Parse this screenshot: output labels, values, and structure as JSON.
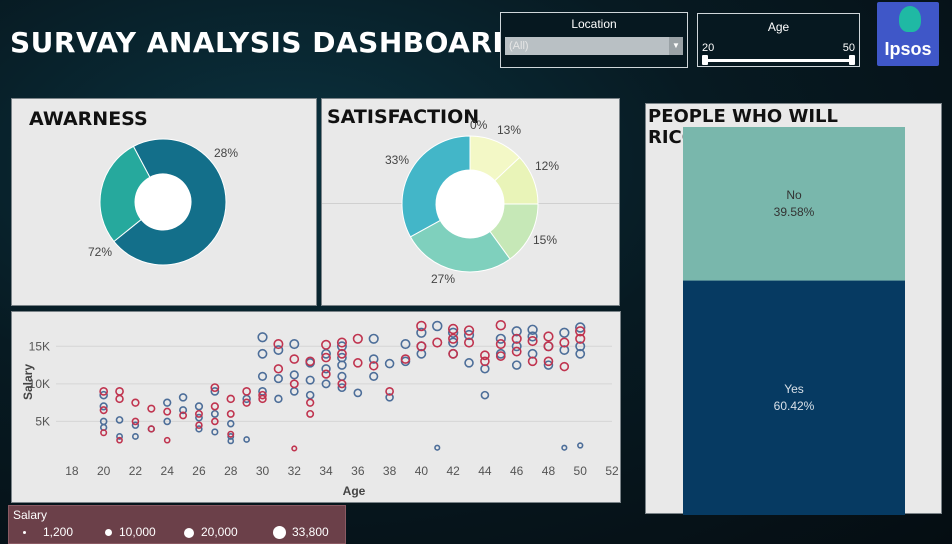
{
  "title": "SURVAY ANALYSIS DASHBOARD",
  "filters": {
    "location": {
      "label": "Location",
      "value": "(All)"
    },
    "age": {
      "label": "Age",
      "min": "20",
      "max": "50"
    }
  },
  "logo_text": "Ipsos",
  "awareness": {
    "title": "AWARNESS",
    "labels": [
      "72%",
      "28%"
    ]
  },
  "satisfaction": {
    "title": "SATISFACTION",
    "labels": [
      "0%",
      "13%",
      "12%",
      "15%",
      "27%",
      "33%"
    ]
  },
  "recommend": {
    "title": "PEOPLE WHO WILL RICOMMEND",
    "no_label": "No",
    "no_pct": "39.58%",
    "yes_label": "Yes",
    "yes_pct": "60.42%"
  },
  "scatter": {
    "xlabel": "Age",
    "ylabel": "Salary"
  },
  "salary_legend": {
    "title": "Salary",
    "items": [
      "1,200",
      "10,000",
      "20,000",
      "33,800"
    ]
  },
  "colors": {
    "awareness": [
      "#136f8a",
      "#26a99d"
    ],
    "satisfaction": [
      "#fdfcdc",
      "#f3f8c6",
      "#e9f4b8",
      "#c6e8b7",
      "#7fd0bd",
      "#43b6c8"
    ],
    "recommend_no": "#79b7ac",
    "recommend_yes": "#063a62",
    "blue": "#4d6e99",
    "red": "#c0344f"
  },
  "chart_data": [
    {
      "type": "pie",
      "title": "AWARNESS",
      "categories": [
        "",
        ""
      ],
      "values": [
        72,
        28
      ]
    },
    {
      "type": "pie",
      "title": "SATISFACTION",
      "values": [
        0,
        13,
        12,
        15,
        27,
        33
      ]
    },
    {
      "type": "bar",
      "title": "PEOPLE WHO WILL RICOMMEND",
      "categories": [
        "No",
        "Yes"
      ],
      "values": [
        39.58,
        60.42
      ]
    },
    {
      "type": "scatter",
      "xlabel": "Age",
      "ylabel": "Salary",
      "xlim": [
        17,
        52
      ],
      "ylim": [
        0,
        18500
      ],
      "xticks": [
        18,
        20,
        22,
        24,
        26,
        28,
        30,
        32,
        34,
        36,
        38,
        40,
        42,
        44,
        46,
        48,
        50,
        52
      ],
      "yticks": [
        5000,
        10000,
        15000
      ],
      "ytick_labels": [
        "5K",
        "10K",
        "15K"
      ],
      "series": [
        {
          "name": "blue",
          "points": [
            [
              20,
              8500
            ],
            [
              20,
              7000
            ],
            [
              20,
              5000
            ],
            [
              20,
              4200
            ],
            [
              21,
              3000
            ],
            [
              21,
              5200
            ],
            [
              22,
              4500
            ],
            [
              22,
              3000
            ],
            [
              23,
              4000
            ],
            [
              24,
              5000
            ],
            [
              24,
              7500
            ],
            [
              25,
              6500
            ],
            [
              25,
              8200
            ],
            [
              26,
              5500
            ],
            [
              26,
              7000
            ],
            [
              26,
              4000
            ],
            [
              27,
              3600
            ],
            [
              27,
              9000
            ],
            [
              27,
              6000
            ],
            [
              28,
              3000
            ],
            [
              28,
              4700
            ],
            [
              28,
              2400
            ],
            [
              29,
              2600
            ],
            [
              29,
              8000
            ],
            [
              30,
              16200
            ],
            [
              30,
              14000
            ],
            [
              30,
              11000
            ],
            [
              30,
              9000
            ],
            [
              31,
              14500
            ],
            [
              31,
              10700
            ],
            [
              31,
              8000
            ],
            [
              32,
              15300
            ],
            [
              32,
              11200
            ],
            [
              32,
              9000
            ],
            [
              33,
              12800
            ],
            [
              33,
              10500
            ],
            [
              33,
              8500
            ],
            [
              34,
              12000
            ],
            [
              34,
              10000
            ],
            [
              34,
              14000
            ],
            [
              35,
              13500
            ],
            [
              35,
              12500
            ],
            [
              35,
              11000
            ],
            [
              35,
              9500
            ],
            [
              35,
              15000
            ],
            [
              36,
              8800
            ],
            [
              37,
              16000
            ],
            [
              37,
              13300
            ],
            [
              37,
              11000
            ],
            [
              38,
              12700
            ],
            [
              38,
              8200
            ],
            [
              39,
              15300
            ],
            [
              39,
              13000
            ],
            [
              40,
              15000
            ],
            [
              40,
              16800
            ],
            [
              40,
              14000
            ],
            [
              41,
              17700
            ],
            [
              41,
              1500
            ],
            [
              42,
              15500
            ],
            [
              42,
              16800
            ],
            [
              42,
              14000
            ],
            [
              43,
              16500
            ],
            [
              43,
              12800
            ],
            [
              44,
              12000
            ],
            [
              44,
              8500
            ],
            [
              45,
              16000
            ],
            [
              45,
              14000
            ],
            [
              46,
              17000
            ],
            [
              46,
              15000
            ],
            [
              46,
              12500
            ],
            [
              47,
              17200
            ],
            [
              47,
              16300
            ],
            [
              47,
              14000
            ],
            [
              48,
              12500
            ],
            [
              48,
              15000
            ],
            [
              49,
              16800
            ],
            [
              49,
              14500
            ],
            [
              49,
              1500
            ],
            [
              50,
              17500
            ],
            [
              50,
              15000
            ],
            [
              50,
              14000
            ],
            [
              50,
              1800
            ]
          ]
        },
        {
          "name": "red",
          "points": [
            [
              20,
              9000
            ],
            [
              20,
              6500
            ],
            [
              20,
              3500
            ],
            [
              21,
              9000
            ],
            [
              21,
              8000
            ],
            [
              21,
              2500
            ],
            [
              22,
              7500
            ],
            [
              22,
              5000
            ],
            [
              23,
              6700
            ],
            [
              23,
              4000
            ],
            [
              24,
              6300
            ],
            [
              24,
              2500
            ],
            [
              25,
              5800
            ],
            [
              26,
              6000
            ],
            [
              26,
              4500
            ],
            [
              27,
              9500
            ],
            [
              27,
              7000
            ],
            [
              27,
              5000
            ],
            [
              28,
              6000
            ],
            [
              28,
              8000
            ],
            [
              28,
              3300
            ],
            [
              29,
              7500
            ],
            [
              29,
              9000
            ],
            [
              30,
              8500
            ],
            [
              30,
              8000
            ],
            [
              31,
              12000
            ],
            [
              31,
              15300
            ],
            [
              32,
              13300
            ],
            [
              32,
              10000
            ],
            [
              32,
              1400
            ],
            [
              33,
              7500
            ],
            [
              33,
              13000
            ],
            [
              33,
              6000
            ],
            [
              34,
              15200
            ],
            [
              34,
              11300
            ],
            [
              34,
              13500
            ],
            [
              35,
              15500
            ],
            [
              35,
              14000
            ],
            [
              35,
              10000
            ],
            [
              36,
              12800
            ],
            [
              36,
              16000
            ],
            [
              37,
              12400
            ],
            [
              38,
              9000
            ],
            [
              39,
              13300
            ],
            [
              40,
              17700
            ],
            [
              40,
              15000
            ],
            [
              41,
              15500
            ],
            [
              42,
              16000
            ],
            [
              42,
              17300
            ],
            [
              42,
              14000
            ],
            [
              43,
              17100
            ],
            [
              43,
              15500
            ],
            [
              44,
              13800
            ],
            [
              44,
              13000
            ],
            [
              45,
              17800
            ],
            [
              45,
              15300
            ],
            [
              45,
              13700
            ],
            [
              46,
              14300
            ],
            [
              46,
              16000
            ],
            [
              47,
              15700
            ],
            [
              47,
              13000
            ],
            [
              48,
              16300
            ],
            [
              48,
              15000
            ],
            [
              48,
              13000
            ],
            [
              49,
              15500
            ],
            [
              49,
              12300
            ],
            [
              50,
              17000
            ],
            [
              50,
              16000
            ]
          ]
        }
      ]
    }
  ]
}
